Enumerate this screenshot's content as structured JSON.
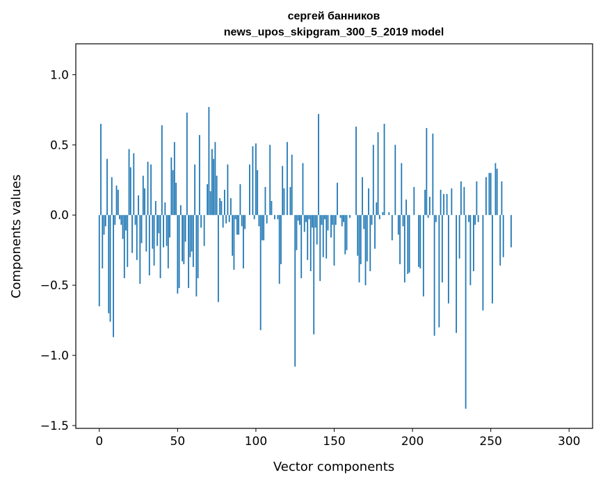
{
  "chart_data": {
    "type": "bar",
    "title_lines": [
      "сергей банников",
      "news_upos_skipgram_300_5_2019 model"
    ],
    "xlabel": "Vector components",
    "ylabel": "Components values",
    "xlim": [
      -15,
      315
    ],
    "ylim": [
      -1.52,
      1.22
    ],
    "xticks": [
      0,
      50,
      100,
      150,
      200,
      250,
      300
    ],
    "xtick_labels": [
      "0",
      "50",
      "100",
      "150",
      "200",
      "250",
      "300"
    ],
    "yticks": [
      -1.5,
      -1.0,
      -0.5,
      0.0,
      0.5,
      1.0
    ],
    "ytick_labels": [
      "−1.5",
      "−1.0",
      "−0.5",
      "0.0",
      "0.5",
      "1.0"
    ],
    "bar_color": "#1f77b4",
    "values": [
      -0.65,
      0.65,
      -0.38,
      -0.14,
      -0.08,
      0.4,
      -0.7,
      -0.76,
      0.27,
      -0.87,
      -0.07,
      0.21,
      0.18,
      -0.03,
      -0.07,
      -0.17,
      -0.45,
      -0.11,
      -0.37,
      0.47,
      0.34,
      -0.27,
      0.44,
      -0.07,
      -0.32,
      0.14,
      -0.49,
      -0.2,
      0.28,
      0.19,
      -0.26,
      0.38,
      -0.43,
      0.36,
      -0.24,
      -0.36,
      0.1,
      -0.22,
      -0.13,
      -0.45,
      0.64,
      -0.23,
      0.09,
      -0.22,
      -0.38,
      -0.16,
      0.41,
      0.32,
      0.52,
      0.23,
      -0.56,
      -0.52,
      0.07,
      -0.33,
      -0.35,
      -0.19,
      0.73,
      -0.52,
      -0.3,
      -0.26,
      -0.37,
      0.36,
      -0.58,
      -0.45,
      0.57,
      -0.09,
      0.0,
      -0.22,
      0.0,
      0.22,
      0.77,
      0.17,
      0.47,
      0.4,
      0.52,
      0.28,
      -0.62,
      0.12,
      0.1,
      -0.09,
      0.18,
      -0.06,
      0.36,
      -0.05,
      0.12,
      -0.29,
      -0.39,
      -0.03,
      -0.14,
      -0.14,
      0.22,
      -0.08,
      -0.38,
      -0.1,
      0.0,
      0.0,
      0.36,
      0.0,
      0.49,
      -0.03,
      0.51,
      0.32,
      -0.08,
      -0.82,
      -0.18,
      -0.18,
      0.2,
      -0.06,
      0.0,
      0.5,
      0.1,
      0.0,
      -0.03,
      0.0,
      -0.03,
      -0.49,
      -0.35,
      0.35,
      0.19,
      0.0,
      0.52,
      0.0,
      0.2,
      0.43,
      0.0,
      -1.08,
      -0.25,
      -0.04,
      -0.07,
      -0.45,
      0.37,
      -0.12,
      -0.05,
      -0.32,
      -0.03,
      -0.4,
      -0.09,
      -0.85,
      -0.09,
      -0.21,
      0.72,
      -0.47,
      -0.07,
      -0.3,
      -0.03,
      -0.31,
      -0.11,
      0.0,
      -0.16,
      -0.07,
      -0.36,
      -0.07,
      0.23,
      0.0,
      -0.02,
      -0.08,
      -0.05,
      -0.28,
      -0.25,
      0.0,
      -0.02,
      0.0,
      0.0,
      0.0,
      0.63,
      -0.29,
      -0.48,
      -0.35,
      0.27,
      -0.1,
      -0.5,
      -0.33,
      0.19,
      -0.4,
      -0.07,
      0.5,
      -0.24,
      0.09,
      0.59,
      -0.03,
      0.0,
      0.02,
      0.65,
      0.0,
      0.0,
      0.02,
      0.0,
      -0.18,
      0.0,
      0.5,
      0.0,
      -0.14,
      -0.35,
      0.37,
      -0.08,
      -0.48,
      0.11,
      -0.42,
      -0.41,
      0.0,
      0.0,
      0.2,
      0.0,
      0.0,
      -0.37,
      -0.38,
      0.0,
      -0.58,
      0.18,
      0.62,
      -0.02,
      0.13,
      0.0,
      0.58,
      -0.86,
      -0.05,
      0.0,
      -0.8,
      0.18,
      -0.48,
      0.15,
      0.0,
      0.15,
      -0.63,
      0.0,
      0.19,
      0.0,
      0.0,
      -0.84,
      0.0,
      -0.31,
      0.24,
      0.0,
      0.2,
      -1.38,
      0.0,
      -0.05,
      -0.5,
      0.0,
      -0.4,
      -0.07,
      0.24,
      -0.05,
      0.0,
      0.0,
      -0.68,
      0.0,
      0.27,
      0.0,
      0.3,
      0.3,
      -0.63,
      0.0,
      0.37,
      0.33,
      0.0,
      -0.36,
      0.24,
      -0.3,
      0.0,
      0.0,
      0.0,
      0.0,
      -0.23,
      0.0,
      0.0,
      0.0,
      0.0,
      0.0,
      0.0,
      0.0,
      0.0,
      0.0,
      0.0,
      0.0,
      0.0,
      0.0,
      0.0,
      0.0,
      0.0,
      0.0,
      0.0,
      0.0,
      0.0,
      0.0,
      0.0,
      0.0,
      0.0,
      0.0,
      0.0,
      0.0,
      0.0,
      0.0,
      0.0,
      0.0,
      0.0,
      0.0,
      0.0,
      0.0,
      0.0
    ]
  }
}
